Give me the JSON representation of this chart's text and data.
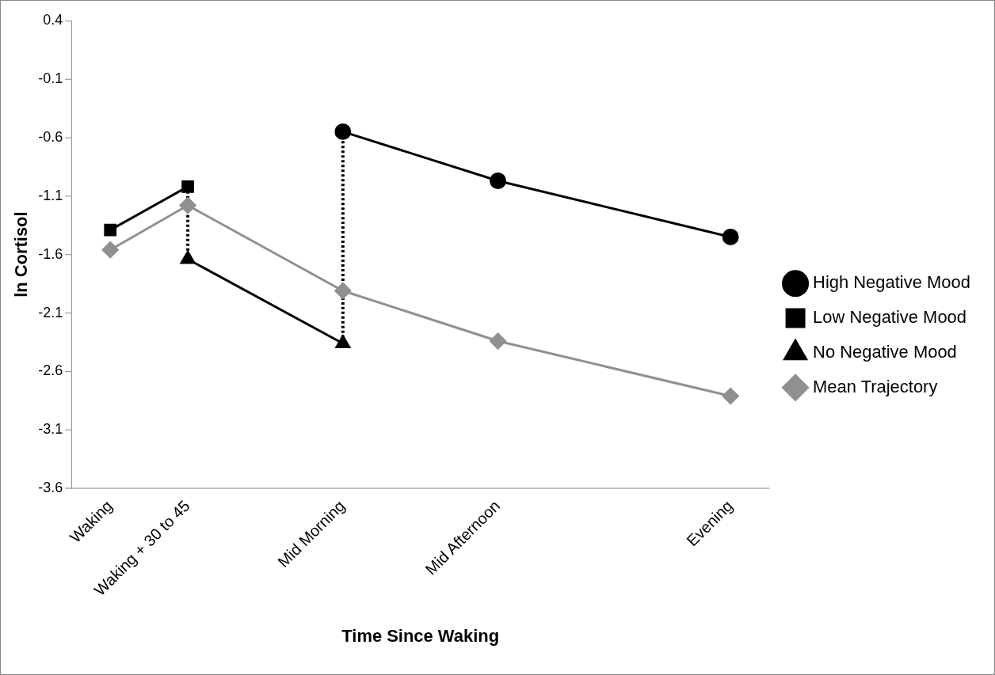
{
  "chart_data": {
    "type": "line",
    "xlabel": "Time Since Waking",
    "ylabel": "ln Cortisol",
    "categories": [
      "Waking",
      "Waking + 30 to 45",
      null,
      "Mid Morning",
      null,
      "Mid Afternoon",
      null,
      null,
      "Evening"
    ],
    "ylim": [
      -3.6,
      0.4
    ],
    "yticks": [
      0.4,
      -0.1,
      -0.6,
      -1.1,
      -1.6,
      -2.1,
      -2.6,
      -3.1,
      -3.6
    ],
    "grid": false,
    "legend": "right",
    "series": [
      {
        "name": "High Negative Mood",
        "color": "#000000",
        "marker": "circle",
        "values": [
          null,
          null,
          null,
          -0.55,
          null,
          -0.97,
          null,
          null,
          -1.45
        ]
      },
      {
        "name": "Low Negative Mood",
        "color": "#000000",
        "marker": "square",
        "values": [
          -1.39,
          -1.02,
          null,
          null,
          null,
          null,
          null,
          null,
          null
        ]
      },
      {
        "name": "No Negative Mood",
        "color": "#000000",
        "marker": "triangle",
        "values": [
          null,
          -1.64,
          null,
          -2.36,
          null,
          null,
          null,
          null,
          null
        ]
      },
      {
        "name": "Mean Trajectory",
        "color": "#909090",
        "marker": "diamond",
        "values": [
          -1.56,
          -1.18,
          null,
          -1.91,
          null,
          -2.34,
          null,
          null,
          -2.81
        ]
      },
      {
        "color": "#000000",
        "marker": "none",
        "line_style": "dotted",
        "x": [
          "Waking + 30 to 45",
          "Waking + 30 to 45"
        ],
        "values": [
          -1.02,
          -1.64
        ]
      },
      {
        "color": "#000000",
        "marker": "none",
        "line_style": "dotted",
        "x": [
          "Mid Morning",
          "Mid Morning"
        ],
        "values": [
          -0.55,
          -2.36
        ]
      }
    ]
  }
}
